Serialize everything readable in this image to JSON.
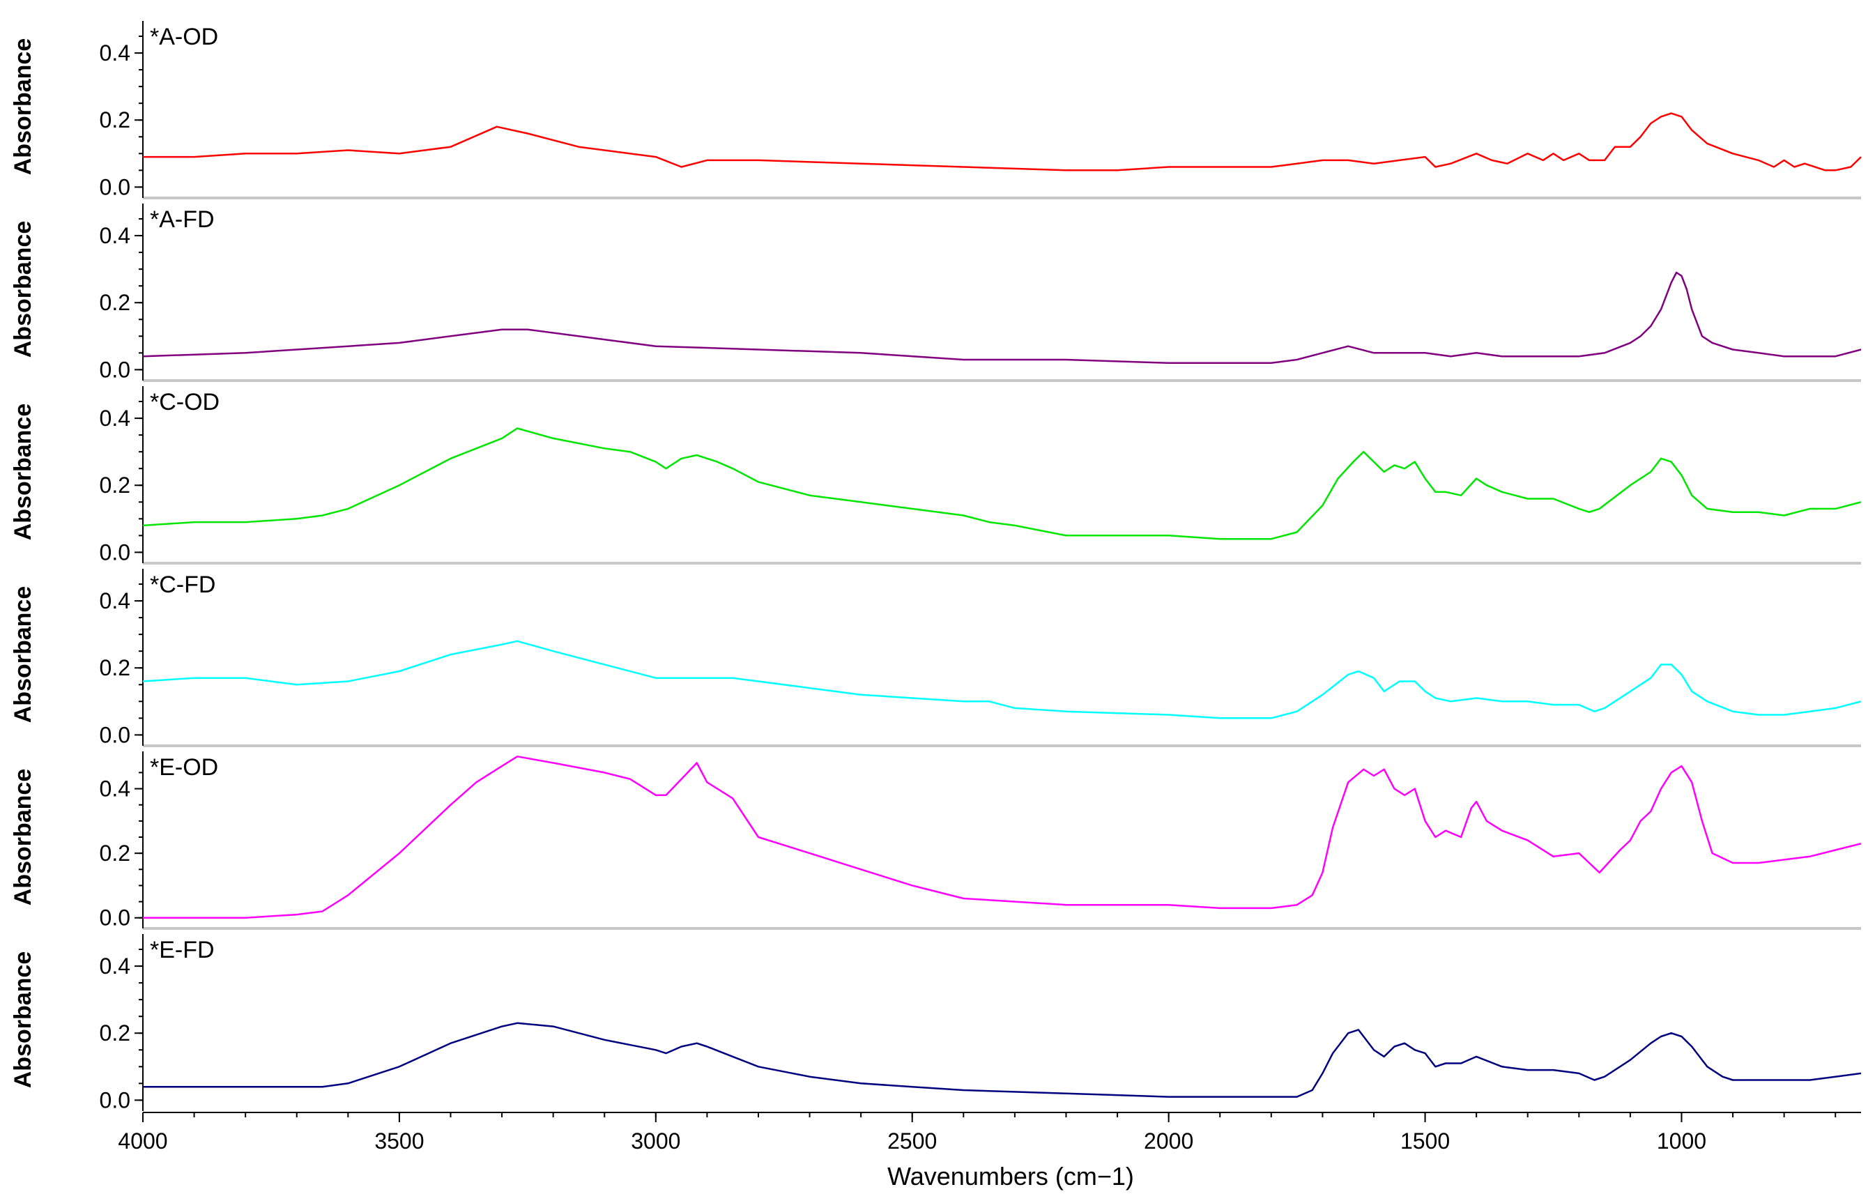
{
  "chart_data": {
    "type": "line",
    "xlabel": "Wavenumbers (cm−1)",
    "ylabel": "Absorbance",
    "xlim": [
      4000,
      650
    ],
    "x_reversed": true,
    "x_ticks": [
      4000,
      3500,
      3000,
      2500,
      2000,
      1500,
      1000
    ],
    "y_ticks": [
      0.0,
      0.2,
      0.4
    ],
    "colors": {
      "A-OD": "#ff0000",
      "A-FD": "#800080",
      "C-OD": "#00e600",
      "C-FD": "#00ffff",
      "E-OD": "#ff00ff",
      "E-FD": "#000080",
      "divider": "#c8c8c8",
      "axis": "#000000"
    },
    "panels": [
      {
        "title": "*A-OD",
        "color": "#ff0000",
        "ylim": [
          -0.02,
          0.5
        ],
        "x": [
          4000,
          3900,
          3800,
          3700,
          3600,
          3500,
          3400,
          3310,
          3250,
          3150,
          3000,
          2950,
          2900,
          2850,
          2800,
          2600,
          2400,
          2200,
          2100,
          2000,
          1900,
          1800,
          1750,
          1700,
          1650,
          1600,
          1550,
          1500,
          1480,
          1450,
          1400,
          1370,
          1340,
          1300,
          1270,
          1250,
          1230,
          1200,
          1180,
          1150,
          1130,
          1100,
          1080,
          1060,
          1040,
          1020,
          1000,
          980,
          950,
          900,
          850,
          820,
          800,
          780,
          760,
          720,
          700,
          670,
          650
        ],
        "y": [
          0.09,
          0.09,
          0.1,
          0.1,
          0.11,
          0.1,
          0.12,
          0.18,
          0.16,
          0.12,
          0.09,
          0.06,
          0.08,
          0.08,
          0.08,
          0.07,
          0.06,
          0.05,
          0.05,
          0.06,
          0.06,
          0.06,
          0.07,
          0.08,
          0.08,
          0.07,
          0.08,
          0.09,
          0.06,
          0.07,
          0.1,
          0.08,
          0.07,
          0.1,
          0.08,
          0.1,
          0.08,
          0.1,
          0.08,
          0.08,
          0.12,
          0.12,
          0.15,
          0.19,
          0.21,
          0.22,
          0.21,
          0.17,
          0.13,
          0.1,
          0.08,
          0.06,
          0.08,
          0.06,
          0.07,
          0.05,
          0.05,
          0.06,
          0.09
        ]
      },
      {
        "title": "*A-FD",
        "color": "#800080",
        "ylim": [
          -0.02,
          0.5
        ],
        "x": [
          4000,
          3800,
          3600,
          3500,
          3400,
          3300,
          3250,
          3100,
          3000,
          2800,
          2600,
          2400,
          2200,
          2000,
          1900,
          1800,
          1750,
          1700,
          1650,
          1600,
          1550,
          1500,
          1450,
          1400,
          1350,
          1300,
          1200,
          1150,
          1100,
          1080,
          1060,
          1040,
          1030,
          1020,
          1010,
          1000,
          990,
          980,
          960,
          940,
          900,
          850,
          800,
          750,
          700,
          650
        ],
        "y": [
          0.04,
          0.05,
          0.07,
          0.08,
          0.1,
          0.12,
          0.12,
          0.09,
          0.07,
          0.06,
          0.05,
          0.03,
          0.03,
          0.02,
          0.02,
          0.02,
          0.03,
          0.05,
          0.07,
          0.05,
          0.05,
          0.05,
          0.04,
          0.05,
          0.04,
          0.04,
          0.04,
          0.05,
          0.08,
          0.1,
          0.13,
          0.18,
          0.22,
          0.26,
          0.29,
          0.28,
          0.24,
          0.18,
          0.1,
          0.08,
          0.06,
          0.05,
          0.04,
          0.04,
          0.04,
          0.06
        ]
      },
      {
        "title": "*C-OD",
        "color": "#00e600",
        "ylim": [
          -0.02,
          0.5
        ],
        "x": [
          4000,
          3900,
          3800,
          3700,
          3650,
          3600,
          3500,
          3400,
          3300,
          3270,
          3200,
          3100,
          3050,
          3000,
          2980,
          2950,
          2920,
          2880,
          2850,
          2800,
          2700,
          2600,
          2500,
          2400,
          2350,
          2300,
          2200,
          2000,
          1900,
          1800,
          1750,
          1700,
          1670,
          1640,
          1620,
          1600,
          1580,
          1560,
          1540,
          1520,
          1500,
          1480,
          1460,
          1430,
          1400,
          1380,
          1350,
          1300,
          1250,
          1200,
          1180,
          1160,
          1100,
          1060,
          1040,
          1020,
          1000,
          980,
          950,
          900,
          850,
          800,
          750,
          700,
          650
        ],
        "y": [
          0.08,
          0.09,
          0.09,
          0.1,
          0.11,
          0.13,
          0.2,
          0.28,
          0.34,
          0.37,
          0.34,
          0.31,
          0.3,
          0.27,
          0.25,
          0.28,
          0.29,
          0.27,
          0.25,
          0.21,
          0.17,
          0.15,
          0.13,
          0.11,
          0.09,
          0.08,
          0.05,
          0.05,
          0.04,
          0.04,
          0.06,
          0.14,
          0.22,
          0.27,
          0.3,
          0.27,
          0.24,
          0.26,
          0.25,
          0.27,
          0.22,
          0.18,
          0.18,
          0.17,
          0.22,
          0.2,
          0.18,
          0.16,
          0.16,
          0.13,
          0.12,
          0.13,
          0.2,
          0.24,
          0.28,
          0.27,
          0.23,
          0.17,
          0.13,
          0.12,
          0.12,
          0.11,
          0.13,
          0.13,
          0.15
        ]
      },
      {
        "title": "*C-FD",
        "color": "#00ffff",
        "ylim": [
          -0.02,
          0.5
        ],
        "x": [
          4000,
          3900,
          3800,
          3700,
          3600,
          3500,
          3400,
          3300,
          3270,
          3200,
          3100,
          3000,
          2950,
          2900,
          2850,
          2800,
          2700,
          2600,
          2500,
          2400,
          2350,
          2300,
          2200,
          2000,
          1900,
          1800,
          1750,
          1700,
          1650,
          1630,
          1600,
          1580,
          1550,
          1520,
          1500,
          1480,
          1450,
          1400,
          1350,
          1300,
          1250,
          1200,
          1170,
          1150,
          1100,
          1060,
          1040,
          1020,
          1000,
          980,
          950,
          900,
          850,
          800,
          750,
          700,
          650
        ],
        "y": [
          0.16,
          0.17,
          0.17,
          0.15,
          0.16,
          0.19,
          0.24,
          0.27,
          0.28,
          0.25,
          0.21,
          0.17,
          0.17,
          0.17,
          0.17,
          0.16,
          0.14,
          0.12,
          0.11,
          0.1,
          0.1,
          0.08,
          0.07,
          0.06,
          0.05,
          0.05,
          0.07,
          0.12,
          0.18,
          0.19,
          0.17,
          0.13,
          0.16,
          0.16,
          0.13,
          0.11,
          0.1,
          0.11,
          0.1,
          0.1,
          0.09,
          0.09,
          0.07,
          0.08,
          0.13,
          0.17,
          0.21,
          0.21,
          0.18,
          0.13,
          0.1,
          0.07,
          0.06,
          0.06,
          0.07,
          0.08,
          0.1
        ]
      },
      {
        "title": "*E-OD",
        "color": "#ff00ff",
        "ylim": [
          -0.02,
          0.52
        ],
        "x": [
          4000,
          3900,
          3800,
          3700,
          3650,
          3600,
          3500,
          3400,
          3350,
          3300,
          3270,
          3200,
          3100,
          3050,
          3000,
          2980,
          2950,
          2920,
          2900,
          2850,
          2800,
          2700,
          2600,
          2500,
          2400,
          2300,
          2200,
          2000,
          1900,
          1800,
          1750,
          1720,
          1700,
          1680,
          1650,
          1620,
          1600,
          1580,
          1560,
          1540,
          1520,
          1500,
          1480,
          1460,
          1430,
          1410,
          1400,
          1380,
          1350,
          1300,
          1250,
          1200,
          1180,
          1160,
          1120,
          1100,
          1080,
          1060,
          1040,
          1020,
          1000,
          980,
          960,
          940,
          900,
          850,
          800,
          750,
          700,
          650
        ],
        "y": [
          0.0,
          0.0,
          0.0,
          0.01,
          0.02,
          0.07,
          0.2,
          0.35,
          0.42,
          0.47,
          0.5,
          0.48,
          0.45,
          0.43,
          0.38,
          0.38,
          0.43,
          0.48,
          0.42,
          0.37,
          0.25,
          0.2,
          0.15,
          0.1,
          0.06,
          0.05,
          0.04,
          0.04,
          0.03,
          0.03,
          0.04,
          0.07,
          0.14,
          0.28,
          0.42,
          0.46,
          0.44,
          0.46,
          0.4,
          0.38,
          0.4,
          0.3,
          0.25,
          0.27,
          0.25,
          0.34,
          0.36,
          0.3,
          0.27,
          0.24,
          0.19,
          0.2,
          0.17,
          0.14,
          0.21,
          0.24,
          0.3,
          0.33,
          0.4,
          0.45,
          0.47,
          0.42,
          0.3,
          0.2,
          0.17,
          0.17,
          0.18,
          0.19,
          0.21,
          0.23
        ]
      },
      {
        "title": "*E-FD",
        "color": "#000080",
        "ylim": [
          -0.02,
          0.5
        ],
        "x": [
          4000,
          3800,
          3700,
          3650,
          3600,
          3500,
          3400,
          3300,
          3270,
          3200,
          3100,
          3000,
          2980,
          2950,
          2920,
          2900,
          2850,
          2800,
          2700,
          2600,
          2500,
          2400,
          2200,
          2000,
          1900,
          1800,
          1750,
          1720,
          1700,
          1680,
          1650,
          1630,
          1600,
          1580,
          1560,
          1540,
          1520,
          1500,
          1480,
          1460,
          1430,
          1400,
          1350,
          1300,
          1250,
          1200,
          1170,
          1150,
          1100,
          1060,
          1040,
          1020,
          1000,
          980,
          950,
          920,
          900,
          850,
          800,
          750,
          700,
          650
        ],
        "y": [
          0.04,
          0.04,
          0.04,
          0.04,
          0.05,
          0.1,
          0.17,
          0.22,
          0.23,
          0.22,
          0.18,
          0.15,
          0.14,
          0.16,
          0.17,
          0.16,
          0.13,
          0.1,
          0.07,
          0.05,
          0.04,
          0.03,
          0.02,
          0.01,
          0.01,
          0.01,
          0.01,
          0.03,
          0.08,
          0.14,
          0.2,
          0.21,
          0.15,
          0.13,
          0.16,
          0.17,
          0.15,
          0.14,
          0.1,
          0.11,
          0.11,
          0.13,
          0.1,
          0.09,
          0.09,
          0.08,
          0.06,
          0.07,
          0.12,
          0.17,
          0.19,
          0.2,
          0.19,
          0.16,
          0.1,
          0.07,
          0.06,
          0.06,
          0.06,
          0.06,
          0.07,
          0.08
        ]
      }
    ]
  }
}
